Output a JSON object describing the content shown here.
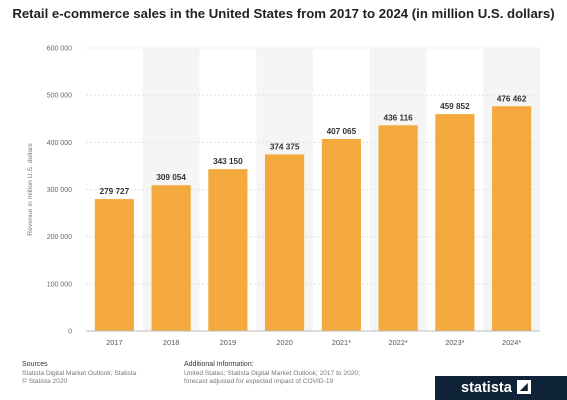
{
  "chart_data": {
    "type": "bar",
    "title": "Retail e-commerce sales in the United States from 2017 to 2024 (in million U.S. dollars)",
    "ylabel": "Revenue in million U.S. dollars",
    "categories": [
      "2017",
      "2018",
      "2019",
      "2020",
      "2021*",
      "2022*",
      "2023*",
      "2024*"
    ],
    "values": [
      279727,
      309054,
      343150,
      374375,
      407065,
      436116,
      459852,
      476462
    ],
    "value_labels": [
      "279 727",
      "309 054",
      "343 150",
      "374 375",
      "407 065",
      "436 116",
      "459 852",
      "476 462"
    ],
    "yticks": [
      0,
      100000,
      200000,
      300000,
      400000,
      500000,
      600000
    ],
    "ytick_labels": [
      "0",
      "100 000",
      "200 000",
      "300 000",
      "400 000",
      "500 000",
      "600 000"
    ],
    "ylim": [
      0,
      600000
    ],
    "bar_color": "#f4a93e",
    "grid": true
  },
  "footer": {
    "sources_heading": "Sources",
    "sources_line1": "Statista Digital Market Outlook; Statista",
    "sources_line2": "© Statista 2020",
    "info_heading": "Additional Information:",
    "info_line1": "United States; Statista Digital Market Outlook; 2017 to 2020;",
    "info_line2": "forecast adjusted for expected impact of COVID-19"
  },
  "brand": {
    "name": "statista",
    "icon": "statista-logo-icon"
  }
}
